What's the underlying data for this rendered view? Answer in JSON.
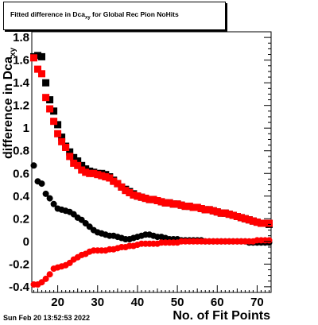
{
  "chart_data": {
    "type": "scatter",
    "title_main": "Fitted difference in Dca",
    "title_sub": "xy",
    "title_rest": " for Global Rec Pion NoHits",
    "xlabel": "No. of Fit Points",
    "ylabel_main": "difference in Dca",
    "ylabel_sub": "xy",
    "xlim": [
      13.5,
      73.5
    ],
    "ylim": [
      -0.45,
      1.85
    ],
    "x_ticks": [
      20,
      30,
      40,
      50,
      60,
      70
    ],
    "y_ticks": [
      -0.4,
      -0.2,
      0,
      0.2,
      0.4,
      0.6,
      0.8,
      1,
      1.2,
      1.4,
      1.6,
      1.8
    ],
    "y_tick_labels": [
      "-0.4",
      "-0.2",
      "0",
      "0.2",
      "0.4",
      "0.6",
      "0.8",
      "1",
      "1.2",
      "1.4",
      "1.6",
      "1.8"
    ],
    "grid": false,
    "series": [
      {
        "marker": "square",
        "color": "#000000",
        "x": [
          14,
          15,
          16,
          17,
          18,
          19,
          20,
          21,
          22,
          23,
          24,
          25,
          26,
          27,
          28,
          29,
          30,
          31,
          32,
          33,
          34,
          35,
          36,
          37,
          38,
          39,
          40,
          41,
          42,
          43,
          44,
          45,
          46,
          47,
          48,
          49,
          50,
          51,
          52,
          53,
          54,
          55,
          56,
          57,
          58,
          59,
          60,
          61,
          62,
          63,
          64,
          65,
          66,
          67,
          68,
          69,
          70,
          71,
          72,
          73
        ],
        "y": [
          1.63,
          1.64,
          1.63,
          1.4,
          1.25,
          1.15,
          1.03,
          0.92,
          0.84,
          0.79,
          0.74,
          0.71,
          0.67,
          0.64,
          0.62,
          0.61,
          0.6,
          0.6,
          0.59,
          0.57,
          0.54,
          0.51,
          0.48,
          0.46,
          0.44,
          0.42,
          0.4,
          0.39,
          0.38,
          0.37,
          0.37,
          0.36,
          0.35,
          0.34,
          0.34,
          0.33,
          0.33,
          0.32,
          0.31,
          0.31,
          0.3,
          0.3,
          0.29,
          0.28,
          0.28,
          0.27,
          0.26,
          0.25,
          0.25,
          0.24,
          0.23,
          0.22,
          0.21,
          0.2,
          0.19,
          0.18,
          0.17,
          0.16,
          0.16,
          0.15
        ]
      },
      {
        "marker": "circle",
        "color": "#000000",
        "x": [
          14,
          15,
          16,
          17,
          18,
          19,
          20,
          21,
          22,
          23,
          24,
          25,
          26,
          27,
          28,
          29,
          30,
          31,
          32,
          33,
          34,
          35,
          36,
          37,
          38,
          39,
          40,
          41,
          42,
          43,
          44,
          45,
          46,
          47,
          48,
          49,
          50,
          51,
          52,
          53,
          54,
          55,
          56,
          57,
          58,
          59,
          60,
          61,
          62,
          63,
          64,
          65,
          66,
          67,
          68,
          69,
          70,
          71,
          72,
          73
        ],
        "y": [
          0.67,
          0.53,
          0.51,
          0.42,
          0.38,
          0.33,
          0.29,
          0.28,
          0.27,
          0.26,
          0.24,
          0.21,
          0.19,
          0.16,
          0.13,
          0.1,
          0.08,
          0.07,
          0.06,
          0.05,
          0.05,
          0.04,
          0.03,
          0.02,
          0.02,
          0.03,
          0.04,
          0.05,
          0.06,
          0.06,
          0.05,
          0.04,
          0.04,
          0.03,
          0.02,
          0.02,
          0.02,
          0.01,
          0.01,
          0.01,
          0.01,
          0.01,
          0.01,
          0.0,
          0.0,
          0.0,
          0.0,
          0.0,
          0.0,
          0.0,
          0.0,
          0.0,
          0.0,
          0.0,
          -0.01,
          -0.01,
          -0.01,
          -0.01,
          -0.01,
          -0.01
        ]
      },
      {
        "marker": "square",
        "color": "#ff0000",
        "x": [
          14,
          15,
          16,
          17,
          18,
          19,
          20,
          21,
          22,
          23,
          24,
          25,
          26,
          27,
          28,
          29,
          30,
          31,
          32,
          33,
          34,
          35,
          36,
          37,
          38,
          39,
          40,
          41,
          42,
          43,
          44,
          45,
          46,
          47,
          48,
          49,
          50,
          51,
          52,
          53,
          54,
          55,
          56,
          57,
          58,
          59,
          60,
          61,
          62,
          63,
          64,
          65,
          66,
          67,
          68,
          69,
          70,
          71,
          72,
          73
        ],
        "y": [
          1.62,
          1.52,
          1.48,
          1.27,
          1.17,
          1.06,
          0.95,
          0.88,
          0.83,
          0.75,
          0.69,
          0.67,
          0.63,
          0.61,
          0.6,
          0.6,
          0.59,
          0.58,
          0.57,
          0.56,
          0.53,
          0.51,
          0.48,
          0.45,
          0.43,
          0.41,
          0.4,
          0.39,
          0.38,
          0.37,
          0.37,
          0.36,
          0.35,
          0.34,
          0.34,
          0.33,
          0.33,
          0.32,
          0.31,
          0.31,
          0.3,
          0.3,
          0.29,
          0.28,
          0.28,
          0.27,
          0.26,
          0.25,
          0.25,
          0.24,
          0.23,
          0.22,
          0.21,
          0.2,
          0.19,
          0.18,
          0.17,
          0.16,
          0.16,
          0.16
        ]
      },
      {
        "marker": "circle",
        "color": "#ff0000",
        "x": [
          14,
          15,
          16,
          17,
          18,
          19,
          20,
          21,
          22,
          23,
          24,
          25,
          26,
          27,
          28,
          29,
          30,
          31,
          32,
          33,
          34,
          35,
          36,
          37,
          38,
          39,
          40,
          41,
          42,
          43,
          44,
          45,
          46,
          47,
          48,
          49,
          50,
          51,
          52,
          53,
          54,
          55,
          56,
          57,
          58,
          59,
          60,
          61,
          62,
          63,
          64,
          65,
          66,
          67,
          68,
          69,
          70,
          71,
          72,
          73
        ],
        "y": [
          -0.38,
          -0.38,
          -0.36,
          -0.33,
          -0.29,
          -0.24,
          -0.23,
          -0.22,
          -0.21,
          -0.19,
          -0.16,
          -0.14,
          -0.12,
          -0.11,
          -0.09,
          -0.08,
          -0.08,
          -0.08,
          -0.08,
          -0.07,
          -0.07,
          -0.06,
          -0.05,
          -0.05,
          -0.04,
          -0.04,
          -0.03,
          -0.02,
          -0.02,
          -0.02,
          -0.02,
          -0.02,
          -0.01,
          -0.01,
          -0.01,
          -0.01,
          -0.01,
          0.0,
          0.0,
          0.0,
          0.0,
          0.0,
          0.0,
          0.0,
          0.0,
          0.0,
          0.0,
          0.0,
          0.0,
          0.0,
          0.0,
          0.0,
          0.0,
          0.0,
          0.0,
          0.0,
          0.01,
          0.01,
          0.01,
          0.01
        ]
      }
    ]
  },
  "footer": {
    "date_stamp": "Sun Feb 20 13:52:53 2022"
  }
}
